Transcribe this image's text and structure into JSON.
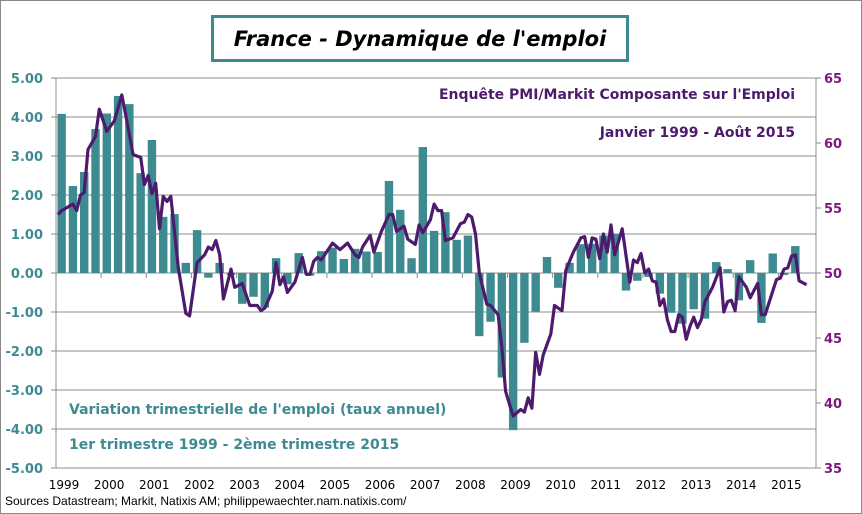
{
  "title": "France - Dynamique de l'emploi",
  "source": "Sources Datastream; Markit, Natixis AM;  philippewaechter.nam.natixis.com/",
  "chart_data": {
    "type": "bar+line",
    "colors": {
      "bars": "#3d8b91",
      "line": "#4e1a6e",
      "left_axis": "#3d8b91",
      "right_axis": "#7b1a7a",
      "grid": "#8c8c8c"
    },
    "grid": true,
    "x_tick_labels": [
      "1999",
      "2000",
      "2001",
      "2002",
      "2003",
      "2004",
      "2005",
      "2006",
      "2007",
      "2008",
      "2009",
      "2010",
      "2011",
      "2012",
      "2013",
      "2014",
      "2015"
    ],
    "left_axis": {
      "ylim": [
        -5,
        5
      ],
      "tick_labels": [
        "5.00",
        "4.00",
        "3.00",
        "2.00",
        "1.00",
        "0.00",
        "-1.00",
        "-2.00",
        "-3.00",
        "-4.00",
        "-5.00"
      ]
    },
    "right_axis": {
      "ylim": [
        35,
        65
      ],
      "tick_labels": [
        "65",
        "60",
        "55",
        "50",
        "45",
        "40",
        "35"
      ]
    },
    "annotations": {
      "line_name": "Enquête PMI/Markit Composante sur l'Emploi",
      "line_period": "Janvier 1999 - Août 2015",
      "bars_name": "Variation trimestrielle de l'emploi (taux annuel)",
      "bars_period": "1er trimestre 1999 - 2ème trimestre 2015"
    },
    "bars": {
      "axis": "left",
      "categories": [
        "1999-Q1",
        "1999-Q2",
        "1999-Q3",
        "1999-Q4",
        "2000-Q1",
        "2000-Q2",
        "2000-Q3",
        "2000-Q4",
        "2001-Q1",
        "2001-Q2",
        "2001-Q3",
        "2001-Q4",
        "2002-Q1",
        "2002-Q2",
        "2002-Q3",
        "2002-Q4",
        "2003-Q1",
        "2003-Q2",
        "2003-Q3",
        "2003-Q4",
        "2004-Q1",
        "2004-Q2",
        "2004-Q3",
        "2004-Q4",
        "2005-Q1",
        "2005-Q2",
        "2005-Q3",
        "2005-Q4",
        "2006-Q1",
        "2006-Q2",
        "2006-Q3",
        "2006-Q4",
        "2007-Q1",
        "2007-Q2",
        "2007-Q3",
        "2007-Q4",
        "2008-Q1",
        "2008-Q2",
        "2008-Q3",
        "2008-Q4",
        "2009-Q1",
        "2009-Q2",
        "2009-Q3",
        "2009-Q4",
        "2010-Q1",
        "2010-Q2",
        "2010-Q3",
        "2010-Q4",
        "2011-Q1",
        "2011-Q2",
        "2011-Q3",
        "2011-Q4",
        "2012-Q1",
        "2012-Q2",
        "2012-Q3",
        "2012-Q4",
        "2013-Q1",
        "2013-Q2",
        "2013-Q3",
        "2013-Q4",
        "2014-Q1",
        "2014-Q2",
        "2014-Q3",
        "2014-Q4",
        "2015-Q1",
        "2015-Q2"
      ],
      "values": [
        4.08,
        2.23,
        2.59,
        3.69,
        4.09,
        4.54,
        4.33,
        2.56,
        3.41,
        1.44,
        1.51,
        0.26,
        1.1,
        -0.12,
        0.26,
        -0.05,
        -0.79,
        -0.61,
        -0.89,
        0.38,
        -0.29,
        0.51,
        -0.07,
        0.56,
        0.65,
        0.36,
        0.62,
        0.55,
        0.54,
        2.36,
        1.62,
        0.38,
        3.23,
        1.08,
        1.56,
        0.85,
        0.96,
        -1.62,
        -1.25,
        -2.68,
        -4.03,
        -1.79,
        -0.99,
        0.41,
        -0.38,
        0.26,
        0.74,
        0.75,
        0.96,
        1.0,
        -0.45,
        -0.2,
        -0.1,
        -0.53,
        -1.02,
        -1.3,
        -0.93,
        -1.17,
        0.28,
        0.1,
        -0.7,
        0.33,
        -1.28,
        0.5,
        -0.05,
        0.69
      ]
    },
    "line": {
      "axis": "right",
      "points": [
        [
          "1999-01",
          54.5
        ],
        [
          "1999-02",
          54.8
        ],
        [
          "1999-05",
          55.3
        ],
        [
          "1999-06",
          54.8
        ],
        [
          "1999-07",
          56.0
        ],
        [
          "1999-08",
          56.2
        ],
        [
          "1999-09",
          59.5
        ],
        [
          "1999-11",
          60.5
        ],
        [
          "1999-12",
          62.6
        ],
        [
          "2000-02",
          60.9
        ],
        [
          "2000-04",
          61.7
        ],
        [
          "2000-06",
          63.7
        ],
        [
          "2000-07",
          62.2
        ],
        [
          "2000-09",
          59.1
        ],
        [
          "2000-11",
          58.9
        ],
        [
          "2000-12",
          56.8
        ],
        [
          "2001-01",
          57.5
        ],
        [
          "2001-02",
          56.1
        ],
        [
          "2001-03",
          56.9
        ],
        [
          "2001-04",
          53.4
        ],
        [
          "2001-05",
          55.9
        ],
        [
          "2001-06",
          55.5
        ],
        [
          "2001-07",
          55.9
        ],
        [
          "2001-09",
          50.4
        ],
        [
          "2001-11",
          46.9
        ],
        [
          "2001-12",
          46.7
        ],
        [
          "2002-02",
          50.8
        ],
        [
          "2002-04",
          51.4
        ],
        [
          "2002-05",
          52.0
        ],
        [
          "2002-06",
          51.8
        ],
        [
          "2002-07",
          52.5
        ],
        [
          "2002-08",
          51.4
        ],
        [
          "2002-09",
          48.0
        ],
        [
          "2002-11",
          50.3
        ],
        [
          "2002-12",
          48.9
        ],
        [
          "2003-02",
          49.2
        ],
        [
          "2003-04",
          47.5
        ],
        [
          "2003-06",
          47.5
        ],
        [
          "2003-07",
          47.1
        ],
        [
          "2003-08",
          47.3
        ],
        [
          "2003-10",
          48.6
        ],
        [
          "2003-11",
          50.8
        ],
        [
          "2003-12",
          49.1
        ],
        [
          "2004-01",
          49.7
        ],
        [
          "2004-02",
          48.5
        ],
        [
          "2004-04",
          49.3
        ],
        [
          "2004-06",
          51.2
        ],
        [
          "2004-07",
          49.9
        ],
        [
          "2004-08",
          49.9
        ],
        [
          "2004-09",
          50.9
        ],
        [
          "2004-10",
          51.2
        ],
        [
          "2004-11",
          51.0
        ],
        [
          "2005-02",
          52.3
        ],
        [
          "2005-04",
          51.8
        ],
        [
          "2005-06",
          52.3
        ],
        [
          "2005-08",
          51.4
        ],
        [
          "2005-09",
          51.2
        ],
        [
          "2005-10",
          52.0
        ],
        [
          "2005-12",
          52.9
        ],
        [
          "2006-01",
          51.6
        ],
        [
          "2006-03",
          53.2
        ],
        [
          "2006-05",
          54.5
        ],
        [
          "2006-06",
          54.5
        ],
        [
          "2006-07",
          53.2
        ],
        [
          "2006-09",
          53.6
        ],
        [
          "2006-10",
          52.6
        ],
        [
          "2006-12",
          52.2
        ],
        [
          "2007-01",
          53.7
        ],
        [
          "2007-02",
          53.1
        ],
        [
          "2007-04",
          54.1
        ],
        [
          "2007-05",
          55.3
        ],
        [
          "2007-06",
          54.8
        ],
        [
          "2007-07",
          54.8
        ],
        [
          "2007-08",
          52.5
        ],
        [
          "2007-10",
          52.7
        ],
        [
          "2007-12",
          53.8
        ],
        [
          "2008-01",
          53.9
        ],
        [
          "2008-02",
          54.5
        ],
        [
          "2008-03",
          54.3
        ],
        [
          "2008-04",
          53.0
        ],
        [
          "2008-05",
          50.0
        ],
        [
          "2008-07",
          47.6
        ],
        [
          "2008-08",
          47.5
        ],
        [
          "2008-10",
          46.8
        ],
        [
          "2008-11",
          44.3
        ],
        [
          "2008-12",
          40.9
        ],
        [
          "2009-02",
          39.0
        ],
        [
          "2009-04",
          39.5
        ],
        [
          "2009-05",
          39.3
        ],
        [
          "2009-06",
          40.4
        ],
        [
          "2009-07",
          39.6
        ],
        [
          "2009-08",
          43.9
        ],
        [
          "2009-09",
          42.2
        ],
        [
          "2009-10",
          43.7
        ],
        [
          "2009-12",
          45.3
        ],
        [
          "2010-01",
          47.5
        ],
        [
          "2010-03",
          47.1
        ],
        [
          "2010-04",
          50.2
        ],
        [
          "2010-06",
          51.6
        ],
        [
          "2010-08",
          52.7
        ],
        [
          "2010-09",
          52.8
        ],
        [
          "2010-10",
          51.2
        ],
        [
          "2010-11",
          52.7
        ],
        [
          "2010-12",
          52.6
        ],
        [
          "2011-01",
          51.1
        ],
        [
          "2011-02",
          53.0
        ],
        [
          "2011-03",
          51.6
        ],
        [
          "2011-04",
          53.7
        ],
        [
          "2011-05",
          51.4
        ],
        [
          "2011-07",
          53.4
        ],
        [
          "2011-09",
          49.3
        ],
        [
          "2011-10",
          51.0
        ],
        [
          "2011-11",
          50.8
        ],
        [
          "2011-12",
          51.5
        ],
        [
          "2012-01",
          50.0
        ],
        [
          "2012-02",
          50.3
        ],
        [
          "2012-03",
          49.4
        ],
        [
          "2012-04",
          49.3
        ],
        [
          "2012-05",
          47.5
        ],
        [
          "2012-06",
          48.0
        ],
        [
          "2012-07",
          46.4
        ],
        [
          "2012-08",
          45.5
        ],
        [
          "2012-09",
          45.5
        ],
        [
          "2012-10",
          46.8
        ],
        [
          "2012-11",
          46.6
        ],
        [
          "2012-12",
          44.9
        ],
        [
          "2013-01",
          45.9
        ],
        [
          "2013-02",
          46.6
        ],
        [
          "2013-03",
          45.8
        ],
        [
          "2013-04",
          46.4
        ],
        [
          "2013-05",
          47.8
        ],
        [
          "2013-07",
          48.9
        ],
        [
          "2013-09",
          50.4
        ],
        [
          "2013-10",
          47.0
        ],
        [
          "2013-11",
          47.8
        ],
        [
          "2013-12",
          47.9
        ],
        [
          "2014-01",
          47.1
        ],
        [
          "2014-02",
          49.7
        ],
        [
          "2014-04",
          48.9
        ],
        [
          "2014-05",
          48.1
        ],
        [
          "2014-07",
          49.2
        ],
        [
          "2014-08",
          46.8
        ],
        [
          "2014-09",
          46.8
        ],
        [
          "2014-11",
          48.6
        ],
        [
          "2014-12",
          49.5
        ],
        [
          "2015-01",
          49.6
        ],
        [
          "2015-02",
          50.3
        ],
        [
          "2015-03",
          50.4
        ],
        [
          "2015-04",
          51.3
        ],
        [
          "2015-05",
          51.4
        ],
        [
          "2015-06",
          49.4
        ],
        [
          "2015-08",
          49.1
        ]
      ]
    }
  }
}
